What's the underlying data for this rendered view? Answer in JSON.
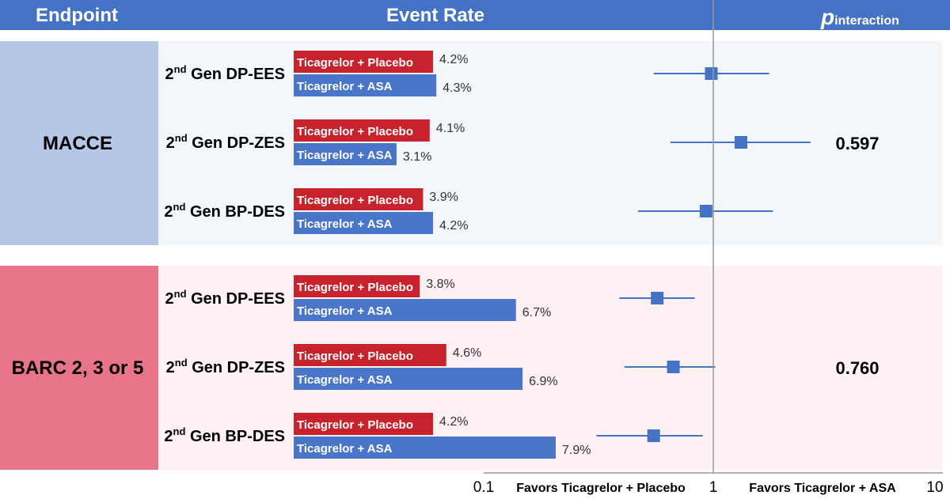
{
  "header": {
    "endpoint": "Endpoint",
    "event_rate": "Event Rate",
    "p_main": "p",
    "p_sub": "interaction"
  },
  "chart_data": {
    "type": "forest",
    "x_axis": {
      "scale": "log",
      "range": [
        0.1,
        10
      ],
      "ticks": [
        "0.1",
        "1",
        "10"
      ],
      "reference": 1
    },
    "favors_left": "Favors Ticagrelor + Placebo",
    "favors_right": "Favors Ticagrelor + ASA",
    "arm_labels": [
      "Ticagrelor + Placebo",
      "Ticagrelor + ASA"
    ],
    "colors": {
      "placebo": "#c8222d",
      "asa": "#4a76c9",
      "marker": "#4472c4",
      "header": "#4472c4"
    },
    "groups": [
      {
        "name": "MACCE",
        "p_interaction": "0.597",
        "band_color": "#b4c7e7",
        "panel_color": "#f3f6fa",
        "rows": [
          {
            "stent_prefix": "2",
            "stent_sup": "nd",
            "stent_suffix": " Gen DP-EES",
            "placebo_rate": 4.2,
            "placebo_label": "4.2%",
            "asa_rate": 4.3,
            "asa_label": "4.3%",
            "hr": 0.98,
            "ci": [
              0.55,
              1.75
            ]
          },
          {
            "stent_prefix": "2",
            "stent_sup": "nd",
            "stent_suffix": " Gen DP-ZES",
            "placebo_rate": 4.1,
            "placebo_label": "4.1%",
            "asa_rate": 3.1,
            "asa_label": "3.1%",
            "hr": 1.32,
            "ci": [
              0.65,
              2.65
            ]
          },
          {
            "stent_prefix": "2",
            "stent_sup": "nd",
            "stent_suffix": " Gen BP-DES",
            "placebo_rate": 3.9,
            "placebo_label": "3.9%",
            "asa_rate": 4.2,
            "asa_label": "4.2%",
            "hr": 0.93,
            "ci": [
              0.47,
              1.82
            ]
          }
        ]
      },
      {
        "name": "BARC 2, 3 or 5",
        "p_interaction": "0.760",
        "band_color": "#e8748a",
        "panel_color": "#fdf1f3",
        "rows": [
          {
            "stent_prefix": "2",
            "stent_sup": "nd",
            "stent_suffix": " Gen DP-EES",
            "placebo_rate": 3.8,
            "placebo_label": "3.8%",
            "asa_rate": 6.7,
            "asa_label": "6.7%",
            "hr": 0.57,
            "ci": [
              0.39,
              0.83
            ]
          },
          {
            "stent_prefix": "2",
            "stent_sup": "nd",
            "stent_suffix": " Gen DP-ZES",
            "placebo_rate": 4.6,
            "placebo_label": "4.6%",
            "asa_rate": 6.9,
            "asa_label": "6.9%",
            "hr": 0.67,
            "ci": [
              0.41,
              1.02
            ]
          },
          {
            "stent_prefix": "2",
            "stent_sup": "nd",
            "stent_suffix": " Gen BP-DES",
            "placebo_rate": 4.2,
            "placebo_label": "4.2%",
            "asa_rate": 7.9,
            "asa_label": "7.9%",
            "hr": 0.55,
            "ci": [
              0.31,
              0.9
            ]
          }
        ]
      }
    ]
  }
}
